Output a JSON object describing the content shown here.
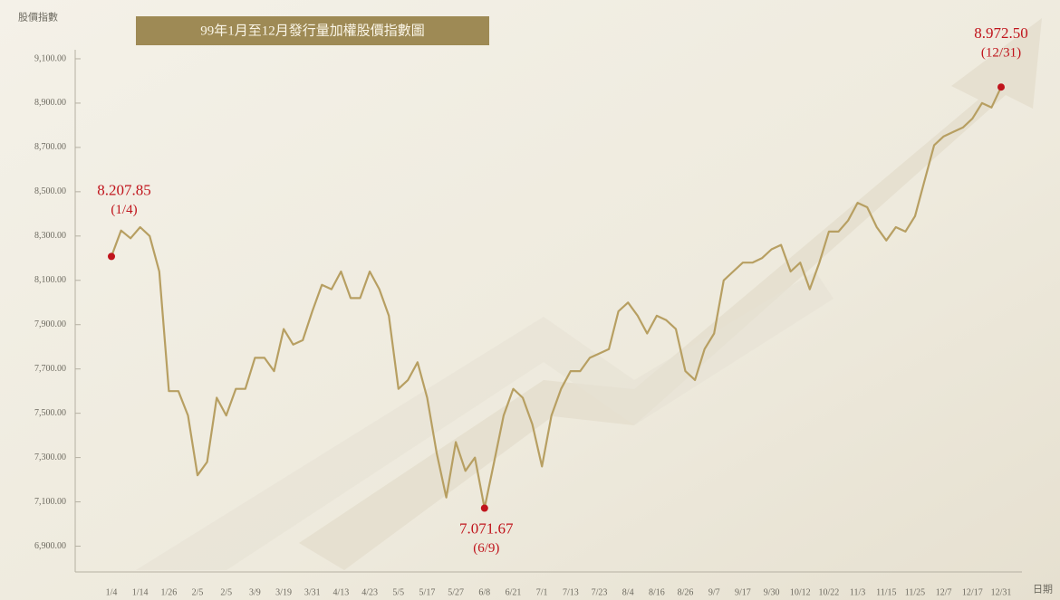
{
  "chart_data": {
    "type": "line",
    "title": "99年1月至12月發行量加權股價指數圖",
    "y_label": "股價指數",
    "x_label": "日期",
    "color": "#b79f62",
    "point_color": "#c0141c",
    "categories": [
      "1/4",
      null,
      null,
      "1/14",
      null,
      null,
      "1/26",
      null,
      null,
      "2/5",
      null,
      null,
      "2/5",
      null,
      null,
      "3/9",
      null,
      null,
      "3/19",
      null,
      null,
      "3/31",
      null,
      null,
      "4/13",
      null,
      null,
      "4/23",
      null,
      null,
      "5/5",
      null,
      null,
      "5/17",
      null,
      null,
      "5/27",
      null,
      null,
      "6/8",
      null,
      null,
      "6/21",
      null,
      null,
      "7/1",
      null,
      null,
      "7/13",
      null,
      null,
      "7/23",
      null,
      null,
      "8/4",
      null,
      null,
      "8/16",
      null,
      null,
      "8/26",
      null,
      null,
      "9/7",
      null,
      null,
      "9/17",
      null,
      null,
      "9/30",
      null,
      null,
      "10/12",
      null,
      null,
      "10/22",
      null,
      null,
      "11/3",
      null,
      null,
      "11/15",
      null,
      null,
      "11/25",
      null,
      null,
      "12/7",
      null,
      null,
      "12/17",
      null,
      null,
      "12/31"
    ],
    "values": [
      8207.85,
      8325,
      8290,
      8340,
      8300,
      8140,
      7600,
      7600,
      7490,
      7220,
      7280,
      7570,
      7490,
      7610,
      7610,
      7750,
      7750,
      7690,
      7880,
      7810,
      7830,
      7960,
      8080,
      8060,
      8140,
      8020,
      8020,
      8140,
      8060,
      7940,
      7610,
      7650,
      7730,
      7570,
      7320,
      7120,
      7370,
      7240,
      7300,
      7071.67,
      7280,
      7490,
      7610,
      7570,
      7450,
      7260,
      7490,
      7610,
      7690,
      7690,
      7750,
      7770,
      7790,
      7960,
      8000,
      7940,
      7860,
      7940,
      7920,
      7880,
      7690,
      7650,
      7790,
      7860,
      8100,
      8140,
      8180,
      8180,
      8200,
      8240,
      8260,
      8140,
      8180,
      8060,
      8180,
      8320,
      8320,
      8370,
      8450,
      8430,
      8340,
      8280,
      8340,
      8320,
      8390,
      8550,
      8710,
      8750,
      8770,
      8790,
      8830,
      8900,
      8880,
      8972.5
    ],
    "annotations": [
      {
        "value_label": "8.207.85",
        "date": "(1/4)"
      },
      {
        "value_label": "7.071.67",
        "date": "(6/9)"
      },
      {
        "value_label": "8.972.50",
        "date": "(12/31)"
      }
    ],
    "ylim": [
      6800,
      9200
    ],
    "yticks": [
      {
        "value": 6900,
        "label": "6,900.00"
      },
      {
        "value": 7100,
        "label": "7,100.00"
      },
      {
        "value": 7300,
        "label": "7,300.00"
      },
      {
        "value": 7500,
        "label": "7,500.00"
      },
      {
        "value": 7700,
        "label": "7,700.00"
      },
      {
        "value": 7900,
        "label": "7,900.00"
      },
      {
        "value": 8100,
        "label": "8,100.00"
      },
      {
        "value": 8300,
        "label": "8,300.00"
      },
      {
        "value": 8500,
        "label": "8,500.00"
      },
      {
        "value": 8700,
        "label": "8,700.00"
      },
      {
        "value": 8900,
        "label": "8,900.00"
      },
      {
        "value": 9100,
        "label": "9,100.00"
      }
    ]
  }
}
